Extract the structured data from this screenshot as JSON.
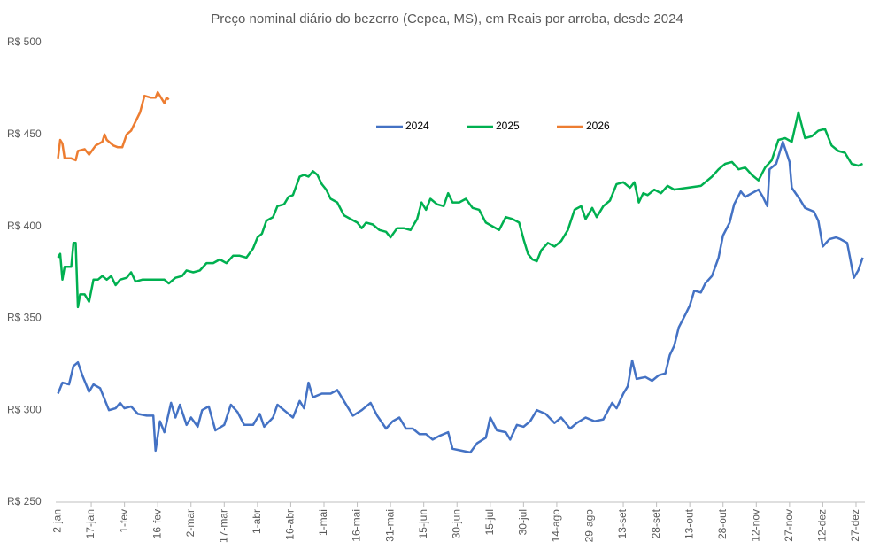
{
  "chart_data": {
    "type": "line",
    "title": "Preço nominal diário do bezerro (Cepea, MS), em Reais por arroba, desde 2024",
    "xlim": [
      1,
      366
    ],
    "xticks": [
      {
        "value": 2,
        "label": "2-jan"
      },
      {
        "value": 17,
        "label": "17-jan"
      },
      {
        "value": 32,
        "label": "1-fev"
      },
      {
        "value": 47,
        "label": "16-fev"
      },
      {
        "value": 62,
        "label": "2-mar"
      },
      {
        "value": 77,
        "label": "17-mar"
      },
      {
        "value": 92,
        "label": "1-abr"
      },
      {
        "value": 107,
        "label": "16-abr"
      },
      {
        "value": 122,
        "label": "1-mai"
      },
      {
        "value": 137,
        "label": "16-mai"
      },
      {
        "value": 152,
        "label": "31-mai"
      },
      {
        "value": 167,
        "label": "15-jun"
      },
      {
        "value": 182,
        "label": "30-jun"
      },
      {
        "value": 197,
        "label": "15-jul"
      },
      {
        "value": 212,
        "label": "30-jul"
      },
      {
        "value": 227,
        "label": "14-ago"
      },
      {
        "value": 242,
        "label": "29-ago"
      },
      {
        "value": 257,
        "label": "13-set"
      },
      {
        "value": 272,
        "label": "28-set"
      },
      {
        "value": 287,
        "label": "13-out"
      },
      {
        "value": 302,
        "label": "28-out"
      },
      {
        "value": 317,
        "label": "12-nov"
      },
      {
        "value": 332,
        "label": "27-nov"
      },
      {
        "value": 347,
        "label": "12-dez"
      },
      {
        "value": 362,
        "label": "27-dez"
      }
    ],
    "ylim": [
      250,
      500
    ],
    "yticks": [
      {
        "value": 250,
        "label": "R$ 250"
      },
      {
        "value": 300,
        "label": "R$ 300"
      },
      {
        "value": 350,
        "label": "R$ 350"
      },
      {
        "value": 400,
        "label": "R$ 400"
      },
      {
        "value": 450,
        "label": "R$ 450"
      },
      {
        "value": 500,
        "label": "R$ 500"
      }
    ],
    "grid": false,
    "legend": "top",
    "series": [
      {
        "name": "2024",
        "color": "#4472c4",
        "x": [
          2,
          4,
          7,
          9,
          11,
          13,
          16,
          18,
          21,
          25,
          28,
          30,
          32,
          35,
          38,
          42,
          45,
          46,
          48,
          50,
          53,
          55,
          57,
          60,
          62,
          65,
          67,
          70,
          73,
          77,
          80,
          83,
          86,
          90,
          93,
          95,
          99,
          101,
          105,
          108,
          111,
          113,
          115,
          117,
          121,
          125,
          128,
          131,
          135,
          139,
          143,
          146,
          150,
          153,
          156,
          159,
          162,
          165,
          168,
          171,
          174,
          178,
          180,
          184,
          188,
          191,
          195,
          197,
          200,
          204,
          206,
          209,
          212,
          215,
          218,
          222,
          226,
          229,
          233,
          236,
          240,
          244,
          248,
          252,
          254,
          257,
          259,
          261,
          263,
          267,
          270,
          273,
          276,
          278,
          280,
          282,
          285,
          287,
          289,
          292,
          294,
          297,
          300,
          302,
          305,
          307,
          310,
          312,
          315,
          318,
          320,
          322,
          323,
          326,
          329,
          332,
          333,
          337,
          339,
          343,
          345,
          347,
          350,
          353,
          355,
          358,
          361,
          363,
          365
        ],
        "values": [
          309,
          315,
          314,
          324,
          326,
          319,
          310,
          314,
          312,
          300,
          301,
          304,
          301,
          302,
          298,
          297,
          297,
          278,
          294,
          288,
          304,
          296,
          303,
          292,
          296,
          291,
          300,
          302,
          289,
          292,
          303,
          299,
          292,
          292,
          298,
          291,
          296,
          303,
          299,
          296,
          305,
          301,
          315,
          307,
          309,
          309,
          311,
          305,
          297,
          300,
          304,
          297,
          290,
          294,
          296,
          290,
          290,
          287,
          287,
          284,
          286,
          288,
          279,
          278,
          277,
          282,
          285,
          296,
          289,
          288,
          284,
          292,
          291,
          294,
          300,
          298,
          293,
          296,
          290,
          293,
          296,
          294,
          295,
          304,
          301,
          309,
          313,
          327,
          317,
          318,
          316,
          319,
          320,
          330,
          335,
          345,
          352,
          357,
          365,
          364,
          369,
          373,
          383,
          395,
          402,
          412,
          419,
          416,
          418,
          420,
          416,
          411,
          431,
          434,
          446,
          435,
          421,
          414,
          410,
          408,
          403,
          389,
          393,
          394,
          393,
          391,
          372,
          376,
          383
        ]
      },
      {
        "name": "2025",
        "color": "#00b050",
        "x": [
          2,
          3,
          4,
          5,
          7,
          8,
          9,
          10,
          11,
          12,
          14,
          16,
          18,
          20,
          22,
          24,
          26,
          28,
          30,
          33,
          35,
          37,
          40,
          44,
          47,
          50,
          52,
          55,
          58,
          60,
          63,
          66,
          69,
          72,
          75,
          78,
          81,
          84,
          87,
          90,
          92,
          94,
          96,
          99,
          101,
          104,
          106,
          108,
          111,
          113,
          115,
          117,
          119,
          121,
          123,
          125,
          128,
          131,
          134,
          137,
          139,
          141,
          144,
          147,
          150,
          152,
          155,
          158,
          161,
          164,
          166,
          168,
          170,
          173,
          176,
          178,
          180,
          183,
          186,
          189,
          192,
          195,
          198,
          201,
          204,
          207,
          210,
          212,
          214,
          216,
          218,
          220,
          223,
          226,
          229,
          232,
          235,
          238,
          240,
          243,
          245,
          248,
          251,
          254,
          257,
          260,
          262,
          264,
          266,
          268,
          271,
          274,
          277,
          280,
          286,
          292,
          297,
          300,
          303,
          306,
          309,
          312,
          315,
          318,
          321,
          324,
          327,
          330,
          333,
          336,
          339,
          342,
          345,
          348,
          351,
          354,
          357,
          360,
          363,
          365
        ],
        "values": [
          383,
          385,
          371,
          378,
          378,
          378,
          391,
          391,
          356,
          363,
          363,
          359,
          371,
          371,
          373,
          371,
          373,
          368,
          371,
          372,
          375,
          370,
          371,
          371,
          371,
          371,
          369,
          372,
          373,
          376,
          375,
          376,
          380,
          380,
          382,
          380,
          384,
          384,
          383,
          388,
          394,
          396,
          403,
          405,
          411,
          412,
          416,
          417,
          427,
          428,
          427,
          430,
          428,
          423,
          420,
          415,
          413,
          406,
          404,
          402,
          399,
          402,
          401,
          398,
          397,
          394,
          399,
          399,
          398,
          404,
          413,
          409,
          415,
          412,
          411,
          418,
          413,
          413,
          415,
          410,
          409,
          402,
          400,
          398,
          405,
          404,
          402,
          393,
          385,
          382,
          381,
          387,
          391,
          389,
          392,
          398,
          409,
          411,
          404,
          410,
          405,
          411,
          414,
          423,
          424,
          421,
          424,
          413,
          418,
          417,
          420,
          418,
          422,
          420,
          421,
          422,
          427,
          431,
          434,
          435,
          431,
          432,
          428,
          425,
          432,
          436,
          447,
          448,
          446,
          462,
          448,
          449,
          452,
          453,
          444,
          441,
          440,
          434,
          433,
          434
        ]
      },
      {
        "name": "2026",
        "color": "#ed7d31",
        "x": [
          2,
          3,
          4,
          5,
          8,
          10,
          11,
          14,
          16,
          19,
          22,
          23,
          24,
          27,
          29,
          31,
          33,
          35,
          37,
          39,
          41,
          44,
          46,
          47,
          49,
          50,
          51,
          52
        ],
        "values": [
          437,
          447,
          445,
          437,
          437,
          436,
          441,
          442,
          439,
          444,
          446,
          450,
          447,
          444,
          443,
          443,
          450,
          452,
          457,
          462,
          471,
          470,
          470,
          473,
          469,
          467,
          470,
          469
        ]
      }
    ]
  }
}
